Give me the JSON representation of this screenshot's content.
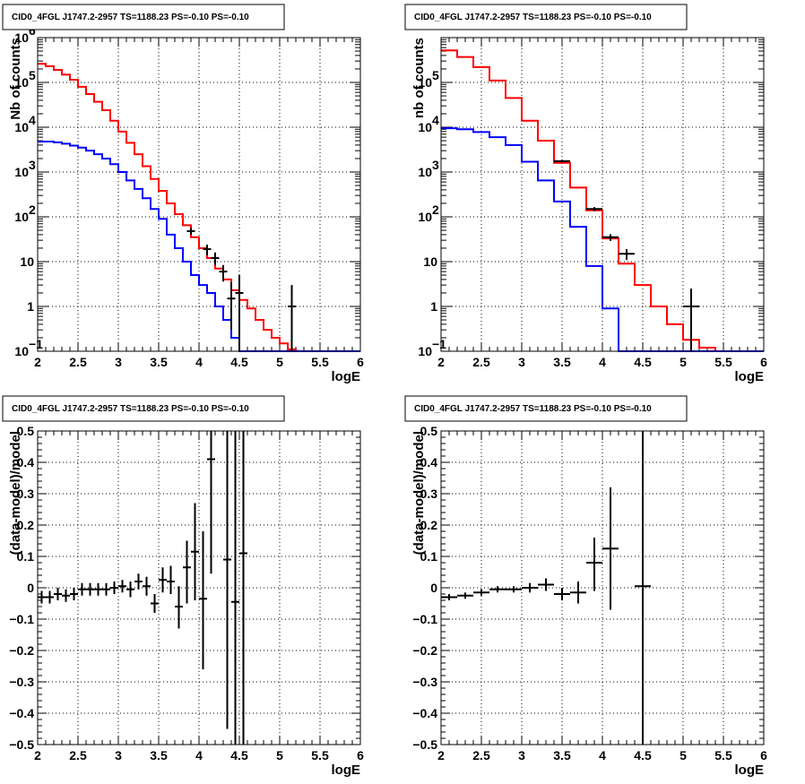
{
  "chart_data": [
    {
      "type": "line",
      "title": "CID0_4FGL J1747.2-2957 TS=1188.23 PS=-0.10 PS=-0.10",
      "xlabel": "logE",
      "ylabel": "Nb of counts",
      "xlim": [
        2,
        6
      ],
      "ylim": [
        0.1,
        1000000
      ],
      "yscale": "log",
      "grid": true,
      "xticks": [
        "2",
        "2.5",
        "3",
        "3.5",
        "4",
        "4.5",
        "5",
        "5.5",
        "6"
      ],
      "yticks": [
        {
          "v": 0.1,
          "label": "10",
          "exp": "−1"
        },
        {
          "v": 1,
          "label": "1",
          "exp": ""
        },
        {
          "v": 10,
          "label": "10",
          "exp": ""
        },
        {
          "v": 100,
          "label": "10",
          "exp": "2"
        },
        {
          "v": 1000,
          "label": "10",
          "exp": "3"
        },
        {
          "v": 10000,
          "label": "10",
          "exp": "4"
        },
        {
          "v": 100000,
          "label": "10",
          "exp": "5"
        },
        {
          "v": 1000000,
          "label": "10",
          "exp": "6"
        }
      ],
      "bin_edges": [
        2.0,
        2.1,
        2.2,
        2.3,
        2.4,
        2.5,
        2.6,
        2.7,
        2.8,
        2.9,
        3.0,
        3.1,
        3.2,
        3.3,
        3.4,
        3.5,
        3.6,
        3.7,
        3.8,
        3.9,
        4.0,
        4.1,
        4.2,
        4.3,
        4.4,
        4.5,
        4.6,
        4.7,
        4.8,
        4.9,
        5.0,
        5.1,
        5.2,
        5.3,
        5.4,
        5.5,
        5.6,
        5.7,
        5.8,
        5.9,
        6.0
      ],
      "series": [
        {
          "color": "#ff0000",
          "values": [
            260000,
            230000,
            190000,
            150000,
            115000,
            80000,
            55000,
            37000,
            24000,
            14000,
            8000,
            4500,
            2500,
            1350,
            700,
            380,
            200,
            115,
            65,
            35,
            20,
            12,
            7,
            4,
            2.3,
            1.4,
            0.9,
            0.5,
            0.3,
            0.2,
            0.15,
            0.11,
            0.1,
            0.1,
            0.1,
            0.1,
            0.1,
            0.1,
            0.1,
            0.1
          ]
        },
        {
          "color": "#0000ff",
          "values": [
            4800,
            4800,
            4600,
            4300,
            3900,
            3500,
            3000,
            2500,
            2000,
            1500,
            1000,
            650,
            420,
            260,
            150,
            90,
            40,
            20,
            10,
            5,
            3,
            2,
            1,
            0.5,
            0.2,
            0.1,
            0.1,
            0.1,
            0.1,
            0.1,
            0.1,
            0.1,
            0.1,
            0.1,
            0.1,
            0.1,
            0.1,
            0.1,
            0.1,
            0.1
          ]
        }
      ],
      "points": [
        {
          "x": 3.9,
          "y": 48,
          "xerr": 0.05,
          "lo": 40,
          "hi": 56
        },
        {
          "x": 4.1,
          "y": 19,
          "xerr": 0.05,
          "lo": 14,
          "hi": 24
        },
        {
          "x": 4.2,
          "y": 12,
          "xerr": 0.05,
          "lo": 8.5,
          "hi": 16
        },
        {
          "x": 4.3,
          "y": 6,
          "xerr": 0.05,
          "lo": 3.6,
          "hi": 8.4
        },
        {
          "x": 4.4,
          "y": 1.5,
          "xerr": 0.05,
          "lo": 0.3,
          "hi": 3.5
        },
        {
          "x": 4.5,
          "y": 2,
          "xerr": 0.05,
          "lo": 0.1,
          "hi": 5
        },
        {
          "x": 5.15,
          "y": 1,
          "xerr": 0.05,
          "lo": 0.1,
          "hi": 3
        }
      ]
    },
    {
      "type": "line",
      "title": "CID0_4FGL J1747.2-2957 TS=1188.23 PS=-0.10 PS=-0.10",
      "xlabel": "logE",
      "ylabel": "nb of counts",
      "xlim": [
        2,
        6
      ],
      "ylim": [
        0.1,
        1000000
      ],
      "yscale": "log",
      "grid": true,
      "xticks": [
        "2",
        "2.5",
        "3",
        "3.5",
        "4",
        "4.5",
        "5",
        "5.5",
        "6"
      ],
      "yticks": [
        {
          "v": 0.1,
          "label": "10",
          "exp": "−1"
        },
        {
          "v": 1,
          "label": "1",
          "exp": ""
        },
        {
          "v": 10,
          "label": "10",
          "exp": ""
        },
        {
          "v": 100,
          "label": "10",
          "exp": "2"
        },
        {
          "v": 1000,
          "label": "10",
          "exp": "3"
        },
        {
          "v": 10000,
          "label": "10",
          "exp": "4"
        },
        {
          "v": 100000,
          "label": "10",
          "exp": "5"
        }
      ],
      "bin_edges": [
        2.0,
        2.2,
        2.4,
        2.6,
        2.8,
        3.0,
        3.2,
        3.4,
        3.6,
        3.8,
        4.0,
        4.2,
        4.4,
        4.6,
        4.8,
        5.0,
        5.2,
        5.4,
        5.6,
        5.8,
        6.0
      ],
      "series": [
        {
          "color": "#ff0000",
          "values": [
            520000,
            370000,
            220000,
            110000,
            45000,
            14000,
            5000,
            1600,
            450,
            140,
            33,
            9,
            3,
            1,
            0.4,
            0.18,
            0.12,
            0.1,
            0.1,
            0.1
          ]
        },
        {
          "color": "#0000ff",
          "values": [
            9500,
            9000,
            7800,
            6000,
            4000,
            1700,
            650,
            220,
            60,
            8,
            0.9,
            0.1,
            0.1,
            0.1,
            0.1,
            0.1,
            0.1,
            0.1,
            0.1,
            0.1
          ]
        }
      ],
      "points": [
        {
          "x": 3.5,
          "y": 1750,
          "xerr": 0.1,
          "lo": 1650,
          "hi": 1850
        },
        {
          "x": 3.9,
          "y": 150,
          "xerr": 0.1,
          "lo": 135,
          "hi": 165
        },
        {
          "x": 4.1,
          "y": 35,
          "xerr": 0.1,
          "lo": 29,
          "hi": 41
        },
        {
          "x": 4.3,
          "y": 15,
          "xerr": 0.1,
          "lo": 11,
          "hi": 19
        },
        {
          "x": 5.1,
          "y": 1,
          "xerr": 0.1,
          "lo": 0.1,
          "hi": 2.5
        }
      ]
    },
    {
      "type": "scatter",
      "title": "CID0_4FGL J1747.2-2957 TS=1188.23 PS=-0.10 PS=-0.10",
      "xlabel": "logE",
      "ylabel": "(data-model)/model",
      "xlim": [
        2,
        6
      ],
      "ylim": [
        -0.5,
        0.5
      ],
      "grid": true,
      "xticks": [
        "2",
        "2.5",
        "3",
        "3.5",
        "4",
        "4.5",
        "5",
        "5.5",
        "6"
      ],
      "yticks": [
        "-0.5",
        "-0.4",
        "-0.3",
        "-0.2",
        "-0.1",
        "0",
        "0.1",
        "0.2",
        "0.3",
        "0.4",
        "0.5"
      ],
      "points": [
        {
          "x": 2.05,
          "y": -0.03,
          "xerr": 0.05,
          "lo": -0.05,
          "hi": -0.01
        },
        {
          "x": 2.15,
          "y": -0.03,
          "xerr": 0.05,
          "lo": -0.05,
          "hi": -0.01
        },
        {
          "x": 2.25,
          "y": -0.02,
          "xerr": 0.05,
          "lo": -0.04,
          "hi": 0.0
        },
        {
          "x": 2.35,
          "y": -0.025,
          "xerr": 0.05,
          "lo": -0.045,
          "hi": -0.005
        },
        {
          "x": 2.45,
          "y": -0.02,
          "xerr": 0.05,
          "lo": -0.04,
          "hi": 0.0
        },
        {
          "x": 2.55,
          "y": -0.005,
          "xerr": 0.05,
          "lo": -0.025,
          "hi": 0.015
        },
        {
          "x": 2.65,
          "y": -0.005,
          "xerr": 0.05,
          "lo": -0.025,
          "hi": 0.015
        },
        {
          "x": 2.75,
          "y": -0.005,
          "xerr": 0.05,
          "lo": -0.025,
          "hi": 0.015
        },
        {
          "x": 2.85,
          "y": -0.005,
          "xerr": 0.05,
          "lo": -0.025,
          "hi": 0.015
        },
        {
          "x": 2.95,
          "y": 0.0,
          "xerr": 0.05,
          "lo": -0.02,
          "hi": 0.02
        },
        {
          "x": 3.05,
          "y": 0.005,
          "xerr": 0.05,
          "lo": -0.015,
          "hi": 0.025
        },
        {
          "x": 3.15,
          "y": -0.005,
          "xerr": 0.05,
          "lo": -0.03,
          "hi": 0.02
        },
        {
          "x": 3.25,
          "y": 0.02,
          "xerr": 0.05,
          "lo": -0.005,
          "hi": 0.045
        },
        {
          "x": 3.35,
          "y": 0.005,
          "xerr": 0.05,
          "lo": -0.025,
          "hi": 0.035
        },
        {
          "x": 3.45,
          "y": -0.05,
          "xerr": 0.05,
          "lo": -0.08,
          "hi": -0.02
        },
        {
          "x": 3.55,
          "y": 0.025,
          "xerr": 0.05,
          "lo": -0.015,
          "hi": 0.065
        },
        {
          "x": 3.65,
          "y": 0.02,
          "xerr": 0.05,
          "lo": -0.02,
          "hi": 0.07
        },
        {
          "x": 3.75,
          "y": -0.06,
          "xerr": 0.05,
          "lo": -0.13,
          "hi": 0.005
        },
        {
          "x": 3.85,
          "y": 0.065,
          "xerr": 0.05,
          "lo": -0.05,
          "hi": 0.15
        },
        {
          "x": 3.95,
          "y": 0.115,
          "xerr": 0.05,
          "lo": -0.04,
          "hi": 0.27
        },
        {
          "x": 4.05,
          "y": -0.035,
          "xerr": 0.05,
          "lo": -0.26,
          "hi": 0.18
        },
        {
          "x": 4.15,
          "y": 0.41,
          "xerr": 0.05,
          "lo": 0.045,
          "hi": 0.5
        },
        {
          "x": 4.35,
          "y": 0.09,
          "xerr": 0.05,
          "lo": -0.45,
          "hi": 0.5
        },
        {
          "x": 4.45,
          "y": -0.045,
          "xerr": 0.05,
          "lo": -0.5,
          "hi": 0.5
        },
        {
          "x": 4.55,
          "y": 0.11,
          "xerr": 0.05,
          "lo": -0.5,
          "hi": 0.5
        }
      ]
    },
    {
      "type": "scatter",
      "title": "CID0_4FGL J1747.2-2957 TS=1188.23 PS=-0.10 PS=-0.10",
      "xlabel": "logE",
      "ylabel": "(data-model)/model",
      "xlim": [
        2,
        6
      ],
      "ylim": [
        -0.5,
        0.5
      ],
      "grid": true,
      "xticks": [
        "2",
        "2.5",
        "3",
        "3.5",
        "4",
        "4.5",
        "5",
        "5.5",
        "6"
      ],
      "yticks": [
        "-0.5",
        "-0.4",
        "-0.3",
        "-0.2",
        "-0.1",
        "0",
        "0.1",
        "0.2",
        "0.3",
        "0.4",
        "0.5"
      ],
      "points": [
        {
          "x": 2.1,
          "y": -0.03,
          "xerr": 0.1,
          "lo": -0.04,
          "hi": -0.02
        },
        {
          "x": 2.3,
          "y": -0.025,
          "xerr": 0.1,
          "lo": -0.035,
          "hi": -0.015
        },
        {
          "x": 2.5,
          "y": -0.015,
          "xerr": 0.1,
          "lo": -0.025,
          "hi": -0.005
        },
        {
          "x": 2.7,
          "y": -0.005,
          "xerr": 0.1,
          "lo": -0.015,
          "hi": 0.005
        },
        {
          "x": 2.9,
          "y": -0.005,
          "xerr": 0.1,
          "lo": -0.015,
          "hi": 0.005
        },
        {
          "x": 3.1,
          "y": 0.0,
          "xerr": 0.1,
          "lo": -0.015,
          "hi": 0.015
        },
        {
          "x": 3.3,
          "y": 0.01,
          "xerr": 0.1,
          "lo": -0.01,
          "hi": 0.03
        },
        {
          "x": 3.5,
          "y": -0.02,
          "xerr": 0.1,
          "lo": -0.04,
          "hi": 0.0
        },
        {
          "x": 3.7,
          "y": -0.015,
          "xerr": 0.1,
          "lo": -0.05,
          "hi": 0.02
        },
        {
          "x": 3.9,
          "y": 0.08,
          "xerr": 0.1,
          "lo": -0.01,
          "hi": 0.16
        },
        {
          "x": 4.1,
          "y": 0.125,
          "xerr": 0.1,
          "lo": -0.07,
          "hi": 0.32
        },
        {
          "x": 4.5,
          "y": 0.005,
          "xerr": 0.1,
          "lo": -0.5,
          "hi": 0.5
        }
      ]
    }
  ]
}
